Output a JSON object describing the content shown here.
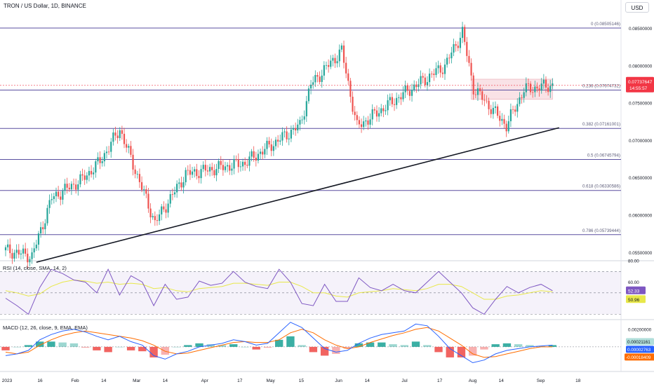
{
  "header": {
    "title": "TRON / US Dollar, 1D, BINANCE",
    "currency_label": "USD"
  },
  "price_badge": {
    "value": "0.07737647",
    "countdown": "14:55:57"
  },
  "rsi_panel": {
    "title": "RSI (14, close, SMA, 14, 2)",
    "rsi_value": "52.33",
    "sma_value": "50.96"
  },
  "macd_panel": {
    "title": "MACD (12, 26, close, 9, EMA, EMA)",
    "hist_value": "0.00021161",
    "signal_value": "0.00002763",
    "macd_value": "-0.00018409"
  },
  "colors": {
    "up": "#26a69a",
    "down": "#ef5350",
    "fib_line": "#5a4fa0",
    "rsi_line": "#7e57c2",
    "rsi_sma": "#e8e84a",
    "macd_line": "#2962ff",
    "signal_line": "#ff6d00",
    "badge": "#f23645",
    "range_box": "#f7d6db"
  },
  "chart_data": [
    {
      "type": "candlestick",
      "title": "TRON / US Dollar, 1D, BINANCE",
      "ylim": [
        0.0539,
        0.0888
      ],
      "y_ticks": [
        "0.08500000",
        "0.08000000",
        "0.07500000",
        "0.07000000",
        "0.06500000",
        "0.06000000",
        "0.05500000"
      ],
      "x_ticks": [
        "2023",
        "16",
        "Feb",
        "14",
        "Mar",
        "14",
        "Apr",
        "17",
        "May",
        "15",
        "Jun",
        "14",
        "Jul",
        "17",
        "Aug",
        "14",
        "Sep",
        "18"
      ],
      "fibonacci": [
        {
          "label": "0 (0.08505146)",
          "value": 0.08505146
        },
        {
          "label": "0.236 (0.07674732)",
          "value": 0.07674732
        },
        {
          "label": "0.382 (0.07161001)",
          "value": 0.07161001
        },
        {
          "label": "0.5 (0.06745794)",
          "value": 0.06745794
        },
        {
          "label": "0.618 (0.06330586)",
          "value": 0.06330586
        },
        {
          "label": "0.786 (0.05739444)",
          "value": 0.05739444
        }
      ],
      "trendline": {
        "from": [
          "2023-01-15",
          0.0537
        ],
        "to": [
          "2023-09-10",
          0.0717
        ]
      },
      "consolidation_range": {
        "from": "2023-08-01",
        "to": "2023-09-07",
        "high": 0.0782,
        "low": 0.0755
      },
      "last_price": 0.07737647,
      "key_points": [
        {
          "date": "2023-01-01",
          "close": 0.0553
        },
        {
          "date": "2023-01-13",
          "close": 0.0545
        },
        {
          "date": "2023-01-22",
          "close": 0.0623
        },
        {
          "date": "2023-02-05",
          "close": 0.0648
        },
        {
          "date": "2023-02-13",
          "close": 0.0672
        },
        {
          "date": "2023-02-22",
          "close": 0.0715
        },
        {
          "date": "2023-03-10",
          "close": 0.059
        },
        {
          "date": "2023-03-24",
          "close": 0.0655
        },
        {
          "date": "2023-04-20",
          "close": 0.067
        },
        {
          "date": "2023-05-15",
          "close": 0.072
        },
        {
          "date": "2023-05-20",
          "close": 0.0775
        },
        {
          "date": "2023-06-03",
          "close": 0.082
        },
        {
          "date": "2023-06-10",
          "close": 0.0718
        },
        {
          "date": "2023-06-30",
          "close": 0.076
        },
        {
          "date": "2023-07-20",
          "close": 0.08
        },
        {
          "date": "2023-07-28",
          "close": 0.0845
        },
        {
          "date": "2023-08-02",
          "close": 0.077
        },
        {
          "date": "2023-08-17",
          "close": 0.072
        },
        {
          "date": "2023-08-25",
          "close": 0.0768
        },
        {
          "date": "2023-09-07",
          "close": 0.0774
        }
      ]
    },
    {
      "type": "line",
      "title": "RSI (14, close, SMA, 14, 2)",
      "ylim": [
        25,
        80
      ],
      "y_ticks": [
        "80.00",
        "60.00"
      ],
      "bands": [
        70,
        50,
        30
      ],
      "series": [
        {
          "name": "RSI",
          "values": [
            45,
            38,
            30,
            55,
            72,
            68,
            62,
            60,
            50,
            72,
            48,
            66,
            60,
            38,
            58,
            44,
            46,
            61,
            57,
            59,
            70,
            60,
            56,
            54,
            72,
            60,
            40,
            38,
            58,
            42,
            42,
            64,
            55,
            52,
            58,
            52,
            50,
            60,
            70,
            60,
            50,
            36,
            30,
            44,
            56,
            50,
            55,
            58,
            52
          ]
        },
        {
          "name": "SMA",
          "values": [
            52,
            50,
            47,
            49,
            56,
            60,
            62,
            61,
            59,
            60,
            58,
            59,
            58,
            54,
            55,
            52,
            51,
            54,
            55,
            56,
            59,
            59,
            58,
            57,
            60,
            60,
            56,
            50,
            50,
            47,
            46,
            50,
            51,
            52,
            54,
            53,
            52,
            54,
            58,
            58,
            56,
            50,
            44,
            44,
            47,
            48,
            50,
            52,
            51
          ]
        }
      ]
    },
    {
      "type": "bar",
      "title": "MACD (12, 26, close, 9, EMA, EMA)",
      "ylim": [
        -0.0028,
        0.0031
      ],
      "y_ticks": [
        "0.00200000"
      ],
      "series": [
        {
          "name": "MACD",
          "values": [
            -0.001,
            -0.0008,
            -0.0004,
            0.0008,
            0.0014,
            0.0018,
            0.002,
            0.0017,
            0.0012,
            0.0008,
            0.0012,
            0.0006,
            0.0002,
            -0.001,
            -0.0014,
            -0.0008,
            -0.0005,
            0.0,
            0.0002,
            0.0004,
            0.0008,
            0.0006,
            0.0002,
            0.0004,
            0.0016,
            0.0028,
            0.0022,
            0.001,
            -0.0002,
            -0.0006,
            -0.0004,
            0.0004,
            0.001,
            0.0014,
            0.0016,
            0.0018,
            0.0026,
            0.0024,
            0.0012,
            -0.0002,
            -0.001,
            -0.0018,
            -0.0015,
            -0.0008,
            -0.0004,
            -0.0002,
            0.0,
            0.0001,
            0.0002
          ]
        },
        {
          "name": "Signal",
          "values": [
            -0.0006,
            -0.0008,
            -0.0006,
            0.0002,
            0.0008,
            0.0013,
            0.0016,
            0.0018,
            0.0016,
            0.0014,
            0.0012,
            0.001,
            0.0007,
            0.0002,
            -0.0005,
            -0.0008,
            -0.0007,
            -0.0004,
            -0.0001,
            0.0002,
            0.0005,
            0.0006,
            0.0005,
            0.0005,
            0.0008,
            0.0016,
            0.002,
            0.0016,
            0.0008,
            0.0002,
            -0.0002,
            0.0,
            0.0005,
            0.0009,
            0.0013,
            0.0016,
            0.002,
            0.0022,
            0.0018,
            0.001,
            0.0002,
            -0.0008,
            -0.0012,
            -0.0011,
            -0.0008,
            -0.0005,
            -0.0002,
            0.0,
            0.0
          ]
        },
        {
          "name": "Histogram",
          "values": [
            -0.0004,
            0.0,
            0.0002,
            0.0006,
            0.0006,
            0.0005,
            0.0004,
            -0.0001,
            -0.0004,
            -0.0006,
            0.0,
            -0.0004,
            -0.0005,
            -0.0012,
            -0.0009,
            0.0,
            0.0002,
            0.0004,
            0.0003,
            0.0002,
            0.0003,
            0.0,
            -0.0003,
            -0.0001,
            0.0008,
            0.0012,
            0.0002,
            -0.0006,
            -0.001,
            -0.0008,
            -0.0002,
            0.0004,
            0.0005,
            0.0005,
            0.0003,
            0.0002,
            0.0006,
            0.0002,
            -0.0006,
            -0.0012,
            -0.0012,
            -0.001,
            -0.0003,
            0.0003,
            0.0004,
            0.0003,
            0.0002,
            0.0001,
            0.0002
          ]
        }
      ]
    }
  ]
}
